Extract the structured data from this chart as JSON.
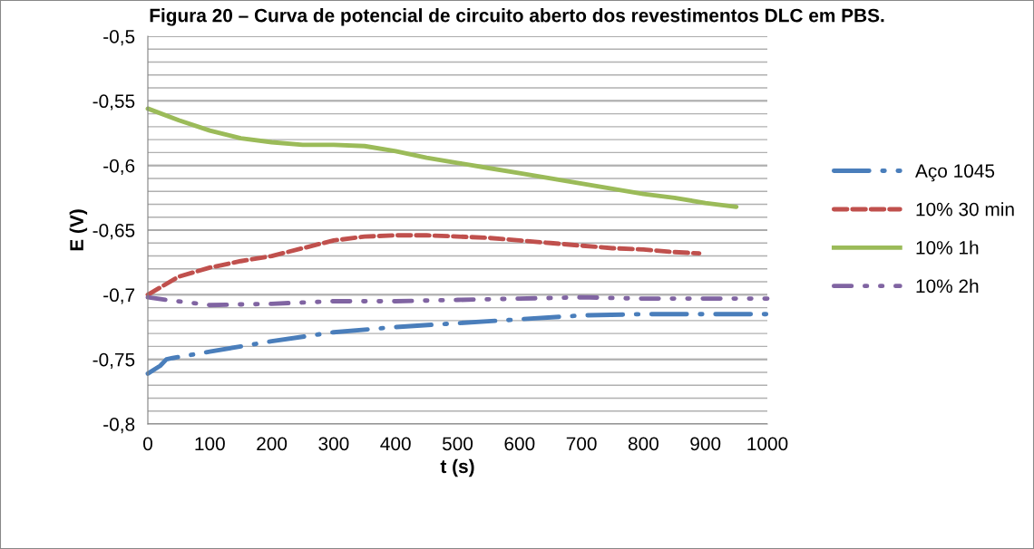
{
  "chart_data": {
    "type": "line",
    "title": "Figura 20 – Curva de potencial de circuito aberto dos revestimentos DLC em PBS.",
    "xlabel": "t (s)",
    "ylabel": "E (V)",
    "xlim": [
      0,
      1000
    ],
    "xticks": [
      0,
      100,
      200,
      300,
      400,
      500,
      600,
      700,
      800,
      900,
      1000
    ],
    "ylim": [
      -0.8,
      -0.5
    ],
    "yticks": [
      {
        "value": -0.8,
        "label": "-0,8"
      },
      {
        "value": -0.79,
        "label": null
      },
      {
        "value": -0.78,
        "label": null
      },
      {
        "value": -0.77,
        "label": null
      },
      {
        "value": -0.76,
        "label": null
      },
      {
        "value": -0.75,
        "label": "-0,75"
      },
      {
        "value": -0.74,
        "label": null
      },
      {
        "value": -0.73,
        "label": null
      },
      {
        "value": -0.72,
        "label": null
      },
      {
        "value": -0.71,
        "label": null
      },
      {
        "value": -0.7,
        "label": "-0,7"
      },
      {
        "value": -0.69,
        "label": null
      },
      {
        "value": -0.68,
        "label": null
      },
      {
        "value": -0.67,
        "label": null
      },
      {
        "value": -0.66,
        "label": null
      },
      {
        "value": -0.65,
        "label": "-0,65"
      },
      {
        "value": -0.64,
        "label": null
      },
      {
        "value": -0.63,
        "label": null
      },
      {
        "value": -0.62,
        "label": null
      },
      {
        "value": -0.61,
        "label": null
      },
      {
        "value": -0.6,
        "label": "-0,6"
      },
      {
        "value": -0.59,
        "label": null
      },
      {
        "value": -0.58,
        "label": null
      },
      {
        "value": -0.57,
        "label": null
      },
      {
        "value": -0.56,
        "label": null
      },
      {
        "value": -0.55,
        "label": "-0,55"
      },
      {
        "value": -0.54,
        "label": null
      },
      {
        "value": -0.53,
        "label": null
      },
      {
        "value": -0.52,
        "label": null
      },
      {
        "value": -0.51,
        "label": null
      },
      {
        "value": -0.5,
        "label": "-0,5"
      }
    ],
    "grid": "y",
    "legend": "right",
    "marker": "none",
    "series": [
      {
        "name": "Aço 1045",
        "color": "#4a7ebb",
        "line_style": "long_dash_dot",
        "x": [
          0,
          20,
          30,
          40,
          100,
          200,
          300,
          400,
          500,
          600,
          700,
          800,
          900,
          1000
        ],
        "values": [
          -0.761,
          -0.755,
          -0.75,
          -0.749,
          -0.744,
          -0.736,
          -0.729,
          -0.725,
          -0.722,
          -0.719,
          -0.716,
          -0.715,
          -0.715,
          -0.715
        ]
      },
      {
        "name": "10% 30 min",
        "color": "#c0504d",
        "line_style": "dashed",
        "x": [
          0,
          25,
          50,
          100,
          150,
          200,
          250,
          300,
          350,
          400,
          450,
          500,
          550,
          600,
          650,
          700,
          750,
          800,
          850,
          890
        ],
        "values": [
          -0.7,
          -0.693,
          -0.686,
          -0.679,
          -0.674,
          -0.67,
          -0.664,
          -0.658,
          -0.655,
          -0.654,
          -0.654,
          -0.655,
          -0.656,
          -0.658,
          -0.66,
          -0.662,
          -0.664,
          -0.665,
          -0.667,
          -0.668
        ]
      },
      {
        "name": "10% 1h",
        "color": "#9bbb59",
        "line_style": "solid",
        "x": [
          0,
          50,
          100,
          150,
          200,
          250,
          300,
          350,
          400,
          450,
          500,
          550,
          600,
          650,
          700,
          750,
          800,
          850,
          900,
          950
        ],
        "values": [
          -0.556,
          -0.565,
          -0.573,
          -0.579,
          -0.582,
          -0.584,
          -0.584,
          -0.585,
          -0.589,
          -0.594,
          -0.598,
          -0.602,
          -0.606,
          -0.61,
          -0.614,
          -0.618,
          -0.622,
          -0.625,
          -0.629,
          -0.632
        ]
      },
      {
        "name": "10% 2h",
        "color": "#8064a2",
        "line_style": "dash_dot",
        "x": [
          0,
          30,
          100,
          200,
          300,
          400,
          500,
          600,
          700,
          800,
          900,
          1000
        ],
        "values": [
          -0.702,
          -0.704,
          -0.708,
          -0.707,
          -0.705,
          -0.705,
          -0.704,
          -0.703,
          -0.702,
          -0.703,
          -0.703,
          -0.703
        ]
      }
    ]
  }
}
